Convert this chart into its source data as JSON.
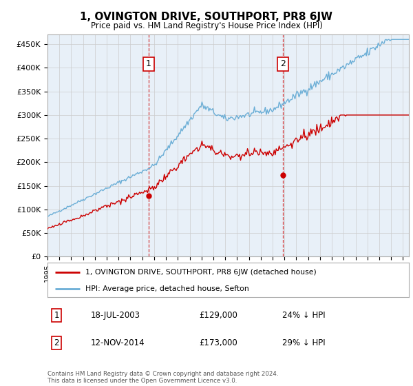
{
  "title": "1, OVINGTON DRIVE, SOUTHPORT, PR8 6JW",
  "subtitle": "Price paid vs. HM Land Registry's House Price Index (HPI)",
  "ylabel_ticks": [
    "£0",
    "£50K",
    "£100K",
    "£150K",
    "£200K",
    "£250K",
    "£300K",
    "£350K",
    "£400K",
    "£450K"
  ],
  "ytick_values": [
    0,
    50000,
    100000,
    150000,
    200000,
    250000,
    300000,
    350000,
    400000,
    450000
  ],
  "ylim": [
    0,
    470000
  ],
  "xlim_start": 1995.0,
  "xlim_end": 2025.5,
  "xtick_years": [
    1995,
    1996,
    1997,
    1998,
    1999,
    2000,
    2001,
    2002,
    2003,
    2004,
    2005,
    2006,
    2007,
    2008,
    2009,
    2010,
    2011,
    2012,
    2013,
    2014,
    2015,
    2016,
    2017,
    2018,
    2019,
    2020,
    2021,
    2022,
    2023,
    2024,
    2025
  ],
  "hpi_color": "#6baed6",
  "price_color": "#cc0000",
  "sale1_x": 2003.54,
  "sale1_y": 129000,
  "sale2_x": 2014.87,
  "sale2_y": 173000,
  "sale1_label": "1",
  "sale2_label": "2",
  "legend_line1": "1, OVINGTON DRIVE, SOUTHPORT, PR8 6JW (detached house)",
  "legend_line2": "HPI: Average price, detached house, Sefton",
  "annotation1_num": "1",
  "annotation1_date": "18-JUL-2003",
  "annotation1_price": "£129,000",
  "annotation1_hpi": "24% ↓ HPI",
  "annotation2_num": "2",
  "annotation2_date": "12-NOV-2014",
  "annotation2_price": "£173,000",
  "annotation2_hpi": "29% ↓ HPI",
  "footer": "Contains HM Land Registry data © Crown copyright and database right 2024.\nThis data is licensed under the Open Government Licence v3.0.",
  "bg_color": "#e8f0f8",
  "plot_bg": "#ffffff"
}
